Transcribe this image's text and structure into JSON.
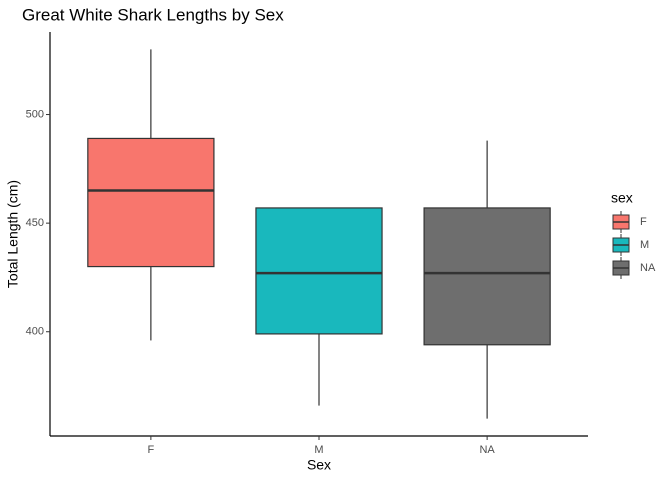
{
  "chart_data": {
    "type": "boxplot",
    "title": "Great White Shark Lengths by Sex",
    "x_label": "Sex",
    "y_label": "Total Length (cm)",
    "legend_title": "sex",
    "categories": [
      "F",
      "M",
      "NA"
    ],
    "colors": [
      "#f8766d",
      "#19b8bd",
      "#6e6e6e"
    ],
    "min": [
      396,
      366,
      360
    ],
    "q1": [
      430,
      399,
      394
    ],
    "median": [
      465,
      427,
      427
    ],
    "q3": [
      489,
      457,
      457
    ],
    "max": [
      530,
      457,
      488
    ],
    "ylim": [
      352,
      538
    ],
    "yticks": [
      400,
      450,
      500
    ],
    "legend": "right"
  }
}
